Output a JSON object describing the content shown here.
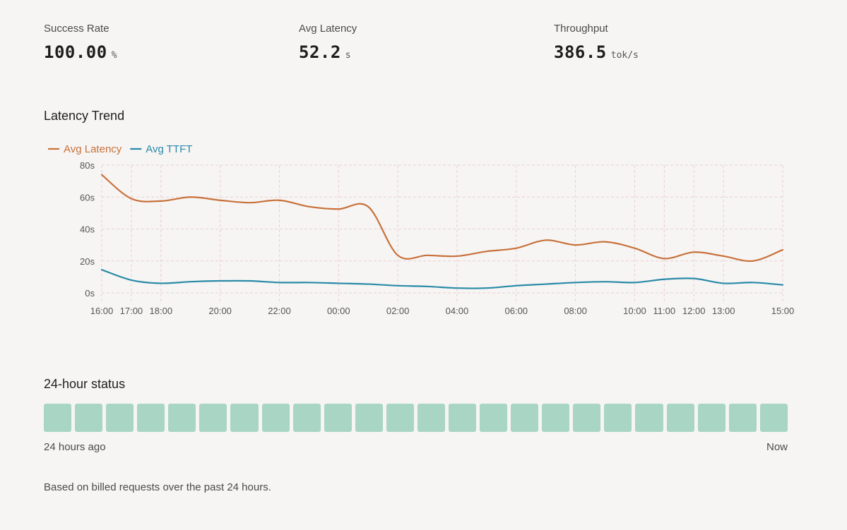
{
  "metrics": [
    {
      "label": "Success Rate",
      "value": "100.00",
      "unit": "%"
    },
    {
      "label": "Avg Latency",
      "value": "52.2",
      "unit": "s"
    },
    {
      "label": "Throughput",
      "value": "386.5",
      "unit": "tok/s"
    }
  ],
  "latency_section": {
    "title": "Latency Trend"
  },
  "status_section": {
    "title": "24-hour status",
    "range_start": "24 hours ago",
    "range_end": "Now",
    "cells": 24,
    "cell_color": "#a8d5c4",
    "footnote": "Based on billed requests over the past 24 hours."
  },
  "colors": {
    "latency": "#c8713a",
    "ttft": "#2a8aa6",
    "grid": "#ebcfcf"
  },
  "chart_data": {
    "type": "line",
    "title": "Latency Trend",
    "ylim": [
      0,
      80
    ],
    "y_ticks": [
      "0s",
      "20s",
      "40s",
      "60s",
      "80s"
    ],
    "y_tick_values": [
      0,
      20,
      40,
      60,
      80
    ],
    "x_ticks": [
      {
        "label": "16:00",
        "h": 0
      },
      {
        "label": "17:00",
        "h": 1
      },
      {
        "label": "18:00",
        "h": 2
      },
      {
        "label": "20:00",
        "h": 4
      },
      {
        "label": "22:00",
        "h": 6
      },
      {
        "label": "00:00",
        "h": 8
      },
      {
        "label": "02:00",
        "h": 10
      },
      {
        "label": "04:00",
        "h": 12
      },
      {
        "label": "06:00",
        "h": 14
      },
      {
        "label": "08:00",
        "h": 16
      },
      {
        "label": "10:00",
        "h": 18
      },
      {
        "label": "11:00",
        "h": 19
      },
      {
        "label": "12:00",
        "h": 20
      },
      {
        "label": "13:00",
        "h": 21
      },
      {
        "label": "15:00",
        "h": 23
      }
    ],
    "grid": true,
    "legend_position": "top-left",
    "series": [
      {
        "name": "Avg Latency",
        "color": "#c8713a",
        "points": [
          [
            0,
            74
          ],
          [
            1,
            59
          ],
          [
            2,
            57.5
          ],
          [
            3,
            60
          ],
          [
            4,
            58
          ],
          [
            5,
            56.5
          ],
          [
            6,
            58
          ],
          [
            7,
            54
          ],
          [
            8,
            52.5
          ],
          [
            9,
            54
          ],
          [
            10,
            23.5
          ],
          [
            11,
            23.5
          ],
          [
            12,
            23
          ],
          [
            13,
            26
          ],
          [
            14,
            28
          ],
          [
            15,
            33
          ],
          [
            16,
            30
          ],
          [
            17,
            32
          ],
          [
            18,
            28
          ],
          [
            19,
            21.5
          ],
          [
            20,
            25.5
          ],
          [
            21,
            23
          ],
          [
            22,
            20
          ],
          [
            23,
            27
          ]
        ]
      },
      {
        "name": "Avg TTFT",
        "color": "#2a8aa6",
        "points": [
          [
            0,
            14.5
          ],
          [
            1,
            8
          ],
          [
            2,
            6
          ],
          [
            3,
            7
          ],
          [
            4,
            7.5
          ],
          [
            5,
            7.5
          ],
          [
            6,
            6.5
          ],
          [
            7,
            6.5
          ],
          [
            8,
            6
          ],
          [
            9,
            5.5
          ],
          [
            10,
            4.5
          ],
          [
            11,
            4
          ],
          [
            12,
            3
          ],
          [
            13,
            3
          ],
          [
            14,
            4.5
          ],
          [
            15,
            5.5
          ],
          [
            16,
            6.5
          ],
          [
            17,
            7
          ],
          [
            18,
            6.5
          ],
          [
            19,
            8.5
          ],
          [
            20,
            9
          ],
          [
            21,
            6
          ],
          [
            22,
            6.5
          ],
          [
            23,
            5
          ]
        ]
      }
    ]
  }
}
